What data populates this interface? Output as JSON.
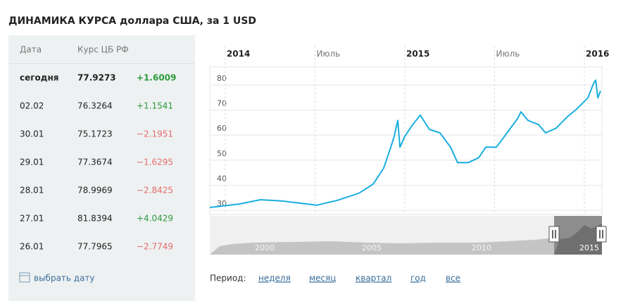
{
  "header": {
    "title": "ДИНАМИКА КУРСА доллара США, за 1 USD"
  },
  "table": {
    "columns": [
      "Дата",
      "Курс ЦБ РФ"
    ],
    "rows": [
      [
        "сегодня",
        "77.9273",
        "+1.6009"
      ],
      [
        "02.02",
        "76.3264",
        "+1.1541"
      ],
      [
        "30.01",
        "75.1723",
        "−2.1951"
      ],
      [
        "29.01",
        "77.3674",
        "−1.6295"
      ],
      [
        "28.01",
        "78.9969",
        "−2.8425"
      ],
      [
        "27.01",
        "81.8394",
        "+4.0429"
      ],
      [
        "26.01",
        "77.7965",
        "−2.7749"
      ]
    ],
    "pick_date": "выбрать дату"
  },
  "chart_data": {
    "type": "line",
    "color": "#1aaee0",
    "grid": true,
    "x": [
      2013.914,
      2014.078,
      2014.196,
      2014.314,
      2014.51,
      2014.627,
      2014.745,
      2014.824,
      2014.882,
      2014.922,
      2014.941,
      2014.961,
      2014.973,
      2015.0,
      2015.039,
      2015.086,
      2015.137,
      2015.196,
      2015.255,
      2015.294,
      2015.353,
      2015.412,
      2015.451,
      2015.51,
      2015.569,
      2015.627,
      2015.647,
      2015.686,
      2015.745,
      2015.784,
      2015.843,
      2015.902,
      2015.961,
      2016.02,
      2016.051,
      2016.063,
      2016.075,
      2016.09
    ],
    "values": [
      31.1,
      32.5,
      34.2,
      33.7,
      32,
      34,
      36.8,
      40.5,
      46.8,
      55.2,
      59.5,
      65.9,
      55.2,
      59.5,
      63.7,
      68,
      62.3,
      60.9,
      55.2,
      49,
      49,
      51,
      55.2,
      55.2,
      60.9,
      66.5,
      69.3,
      65.9,
      64.2,
      60.9,
      62.8,
      67.1,
      70.7,
      74.9,
      80.6,
      82,
      74.9,
      77.7
    ],
    "xlim": [
      2013.914,
      2016.098
    ],
    "xticks": [
      {
        "value": 2014,
        "label": "2014"
      },
      {
        "value": 2014.5,
        "label": "Июль"
      },
      {
        "value": 2015,
        "label": "2015"
      },
      {
        "value": 2015.5,
        "label": "Июль"
      },
      {
        "value": 2016,
        "label": "2016"
      }
    ],
    "ylim": [
      28.3,
      87.3
    ],
    "yticks": [
      30,
      40,
      50,
      60,
      70,
      80
    ]
  },
  "navigator": {
    "labels": [
      "2000",
      "2005",
      "2010",
      "2015"
    ]
  },
  "period": {
    "label": "Период:",
    "options": [
      "неделя",
      "месяц",
      "квартал",
      "год",
      "все"
    ]
  }
}
